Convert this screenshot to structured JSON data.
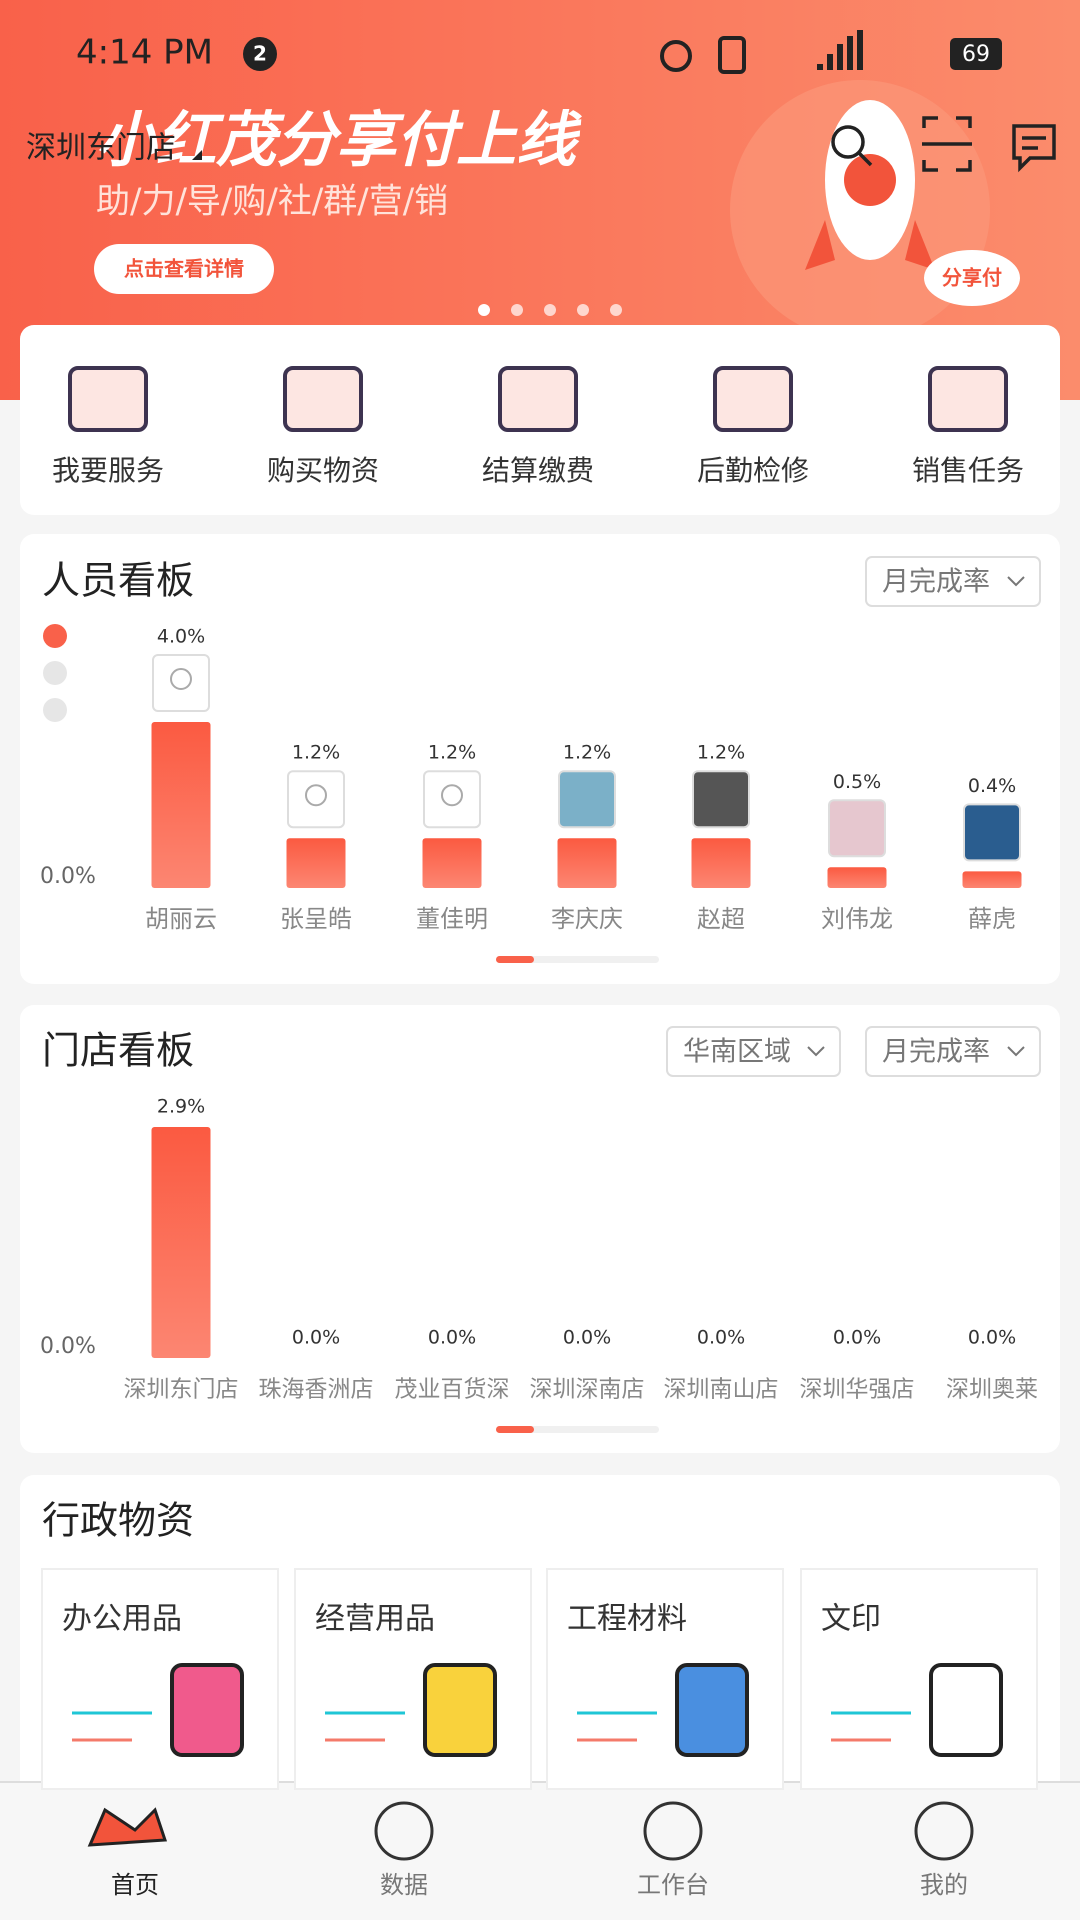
{
  "status_bar": {
    "time": "4:14 PM",
    "notification_count": "2",
    "battery": "69"
  },
  "banner": {
    "location": "深圳东门店",
    "headline": "小红茂分享付上线",
    "subtitle": "助/力/导/购/社/群/营/销",
    "button": "点击查看详情",
    "badge": "分享付"
  },
  "quick_actions": [
    "我要服务",
    "购买物资",
    "结算缴费",
    "后勤检修",
    "销售任务"
  ],
  "staff_board": {
    "title": "人员看板",
    "filter": "月完成率",
    "chart": {
      "type": "bar",
      "categories": [
        "胡丽云",
        "张呈皓",
        "董佳明",
        "李庆庆",
        "赵超",
        "刘伟龙",
        "薛虎"
      ],
      "values": [
        4.0,
        1.2,
        1.2,
        1.2,
        1.2,
        0.5,
        0.4
      ],
      "value_labels": [
        "4.0%",
        "1.2%",
        "1.2%",
        "1.2%",
        "1.2%",
        "0.5%",
        "0.4%"
      ],
      "ylim": [
        0,
        4
      ],
      "yticks": [
        {
          "value": 0,
          "label": "0.0%"
        }
      ]
    }
  },
  "store_board": {
    "title": "门店看板",
    "filters": [
      "华南区域",
      "月完成率"
    ],
    "chart": {
      "type": "bar",
      "categories": [
        "深圳东门店",
        "珠海香洲店",
        "茂业百货深",
        "深圳深南店",
        "深圳南山店",
        "深圳华强店",
        "深圳奥莱"
      ],
      "values": [
        2.9,
        0,
        0,
        0,
        0,
        0,
        0
      ],
      "value_labels": [
        "2.9%",
        "0.0%",
        "0.0%",
        "0.0%",
        "0.0%",
        "0.0%",
        "0.0%"
      ],
      "ylim": [
        0,
        2.9
      ],
      "yticks": [
        {
          "value": 0,
          "label": "0.0%"
        }
      ]
    }
  },
  "admin_supplies": {
    "title": "行政物资",
    "items": [
      "办公用品",
      "经营用品",
      "工程材料",
      "文印"
    ]
  },
  "tab_bar": [
    "首页",
    "数据",
    "工作台",
    "我的"
  ]
}
